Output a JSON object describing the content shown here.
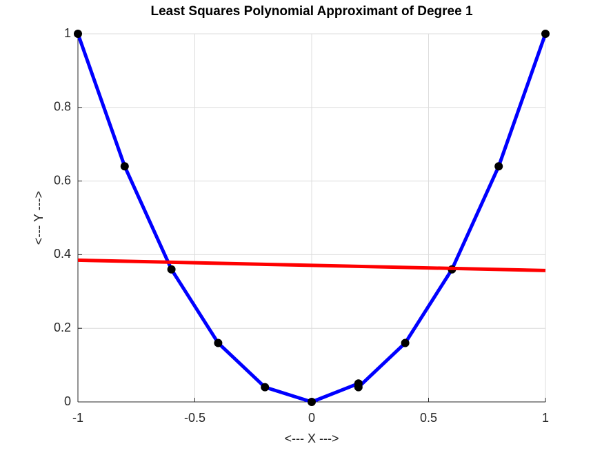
{
  "chart_data": {
    "type": "line",
    "title": "Least Squares Polynomial Approximant of Degree 1",
    "xlabel": "<--- X --->",
    "ylabel": "<---  Y --->",
    "xlim": [
      -1,
      1
    ],
    "ylim": [
      0,
      1
    ],
    "xticks": [
      -1,
      -0.5,
      0,
      0.5,
      1
    ],
    "yticks": [
      0,
      0.2,
      0.4,
      0.6,
      0.8,
      1
    ],
    "grid": true,
    "series": [
      {
        "color": "#0000ff",
        "marker_color": "#000000",
        "x": [
          -1,
          -0.8,
          -0.6,
          -0.4,
          -0.2,
          0,
          0.2,
          0.2,
          0.4,
          0.6,
          0.8,
          1
        ],
        "values": [
          1,
          0.64,
          0.36,
          0.16,
          0.04,
          0,
          0.05,
          0.04,
          0.16,
          0.36,
          0.64,
          1
        ]
      },
      {
        "color": "#ff0000",
        "x": [
          -1,
          1
        ],
        "values": [
          0.385,
          0.357
        ]
      }
    ]
  }
}
